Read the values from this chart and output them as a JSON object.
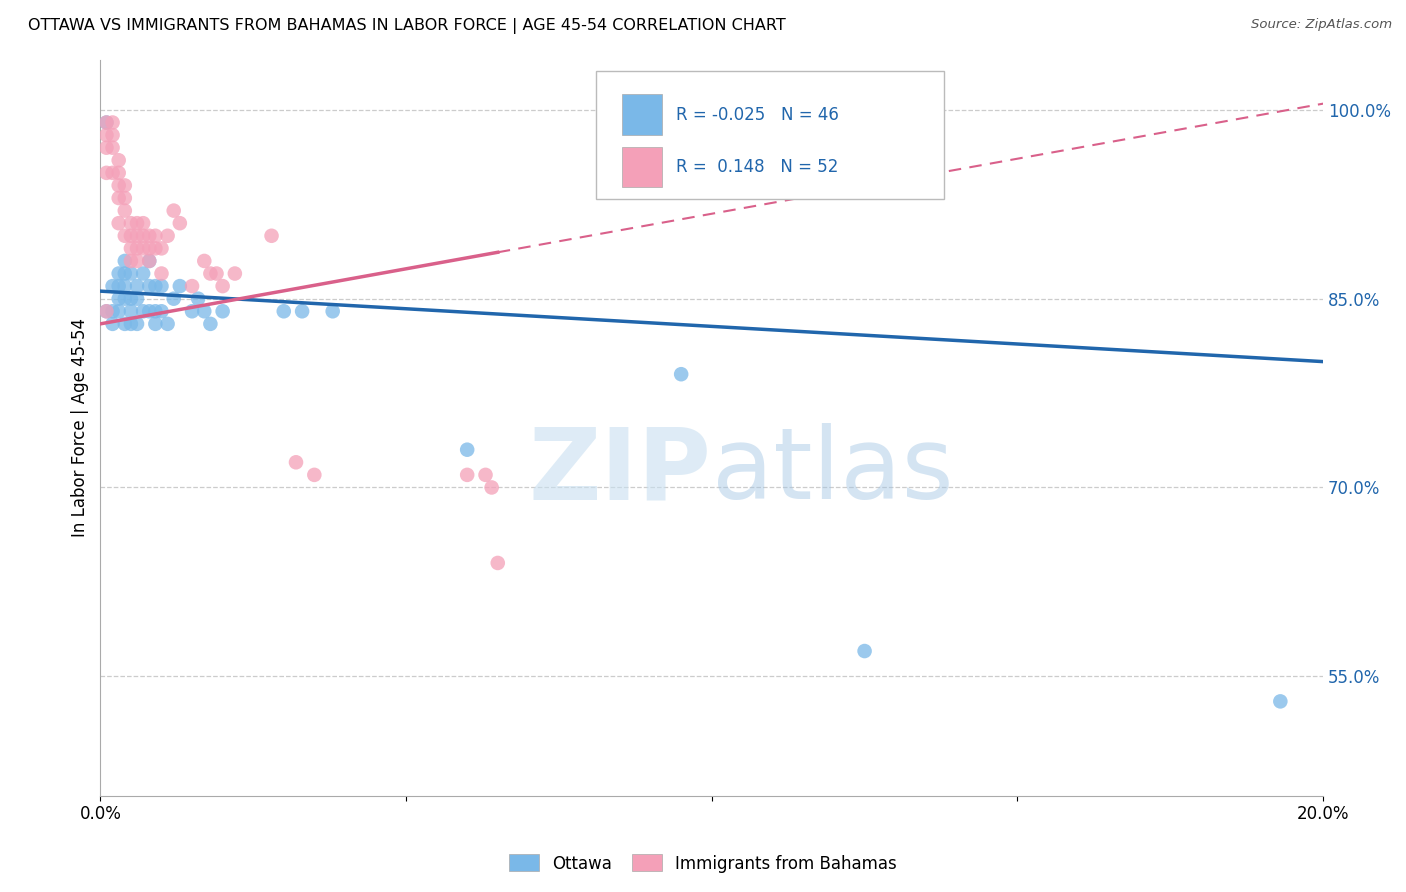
{
  "title": "OTTAWA VS IMMIGRANTS FROM BAHAMAS IN LABOR FORCE | AGE 45-54 CORRELATION CHART",
  "source": "Source: ZipAtlas.com",
  "ylabel": "In Labor Force | Age 45-54",
  "r_ottawa": -0.025,
  "n_ottawa": 46,
  "r_bahamas": 0.148,
  "n_bahamas": 52,
  "xlim": [
    0.0,
    0.2
  ],
  "ylim": [
    0.455,
    1.04
  ],
  "yticks": [
    0.55,
    0.7,
    0.85,
    1.0
  ],
  "ytick_labels": [
    "55.0%",
    "70.0%",
    "85.0%",
    "100.0%"
  ],
  "xticks": [
    0.0,
    0.05,
    0.1,
    0.15,
    0.2
  ],
  "xtick_labels": [
    "0.0%",
    "",
    "",
    "",
    "20.0%"
  ],
  "watermark_zip": "ZIP",
  "watermark_atlas": "atlas",
  "blue_color": "#7ab8e8",
  "pink_color": "#f4a0b8",
  "blue_line_color": "#2166ac",
  "pink_line_color": "#d9608a",
  "ottawa_x": [
    0.001,
    0.001,
    0.002,
    0.002,
    0.002,
    0.003,
    0.003,
    0.003,
    0.003,
    0.004,
    0.004,
    0.004,
    0.004,
    0.004,
    0.005,
    0.005,
    0.005,
    0.005,
    0.006,
    0.006,
    0.006,
    0.007,
    0.007,
    0.008,
    0.008,
    0.008,
    0.009,
    0.009,
    0.009,
    0.01,
    0.01,
    0.011,
    0.012,
    0.013,
    0.015,
    0.016,
    0.017,
    0.018,
    0.02,
    0.03,
    0.033,
    0.038,
    0.06,
    0.095,
    0.125,
    0.193
  ],
  "ottawa_y": [
    0.99,
    0.84,
    0.86,
    0.84,
    0.83,
    0.87,
    0.86,
    0.85,
    0.84,
    0.88,
    0.87,
    0.86,
    0.85,
    0.83,
    0.87,
    0.85,
    0.84,
    0.83,
    0.86,
    0.85,
    0.83,
    0.87,
    0.84,
    0.88,
    0.86,
    0.84,
    0.86,
    0.84,
    0.83,
    0.86,
    0.84,
    0.83,
    0.85,
    0.86,
    0.84,
    0.85,
    0.84,
    0.83,
    0.84,
    0.84,
    0.84,
    0.84,
    0.73,
    0.79,
    0.57,
    0.53
  ],
  "bahamas_x": [
    0.001,
    0.001,
    0.001,
    0.001,
    0.001,
    0.002,
    0.002,
    0.002,
    0.002,
    0.003,
    0.003,
    0.003,
    0.003,
    0.003,
    0.004,
    0.004,
    0.004,
    0.004,
    0.005,
    0.005,
    0.005,
    0.005,
    0.006,
    0.006,
    0.006,
    0.006,
    0.007,
    0.007,
    0.007,
    0.008,
    0.008,
    0.008,
    0.009,
    0.009,
    0.01,
    0.01,
    0.011,
    0.012,
    0.013,
    0.015,
    0.017,
    0.018,
    0.019,
    0.02,
    0.022,
    0.028,
    0.032,
    0.035,
    0.06,
    0.063,
    0.064,
    0.065
  ],
  "bahamas_y": [
    0.99,
    0.98,
    0.97,
    0.95,
    0.84,
    0.99,
    0.98,
    0.97,
    0.95,
    0.96,
    0.95,
    0.94,
    0.93,
    0.91,
    0.94,
    0.93,
    0.92,
    0.9,
    0.91,
    0.9,
    0.89,
    0.88,
    0.91,
    0.9,
    0.89,
    0.88,
    0.91,
    0.9,
    0.89,
    0.9,
    0.89,
    0.88,
    0.9,
    0.89,
    0.89,
    0.87,
    0.9,
    0.92,
    0.91,
    0.86,
    0.88,
    0.87,
    0.87,
    0.86,
    0.87,
    0.9,
    0.72,
    0.71,
    0.71,
    0.71,
    0.7,
    0.64
  ],
  "blue_trend_x0": 0.0,
  "blue_trend_y0": 0.856,
  "blue_trend_x1": 0.2,
  "blue_trend_y1": 0.8,
  "pink_trend_x0": 0.0,
  "pink_trend_y0": 0.83,
  "pink_trend_x1": 0.2,
  "pink_trend_y1": 1.005
}
